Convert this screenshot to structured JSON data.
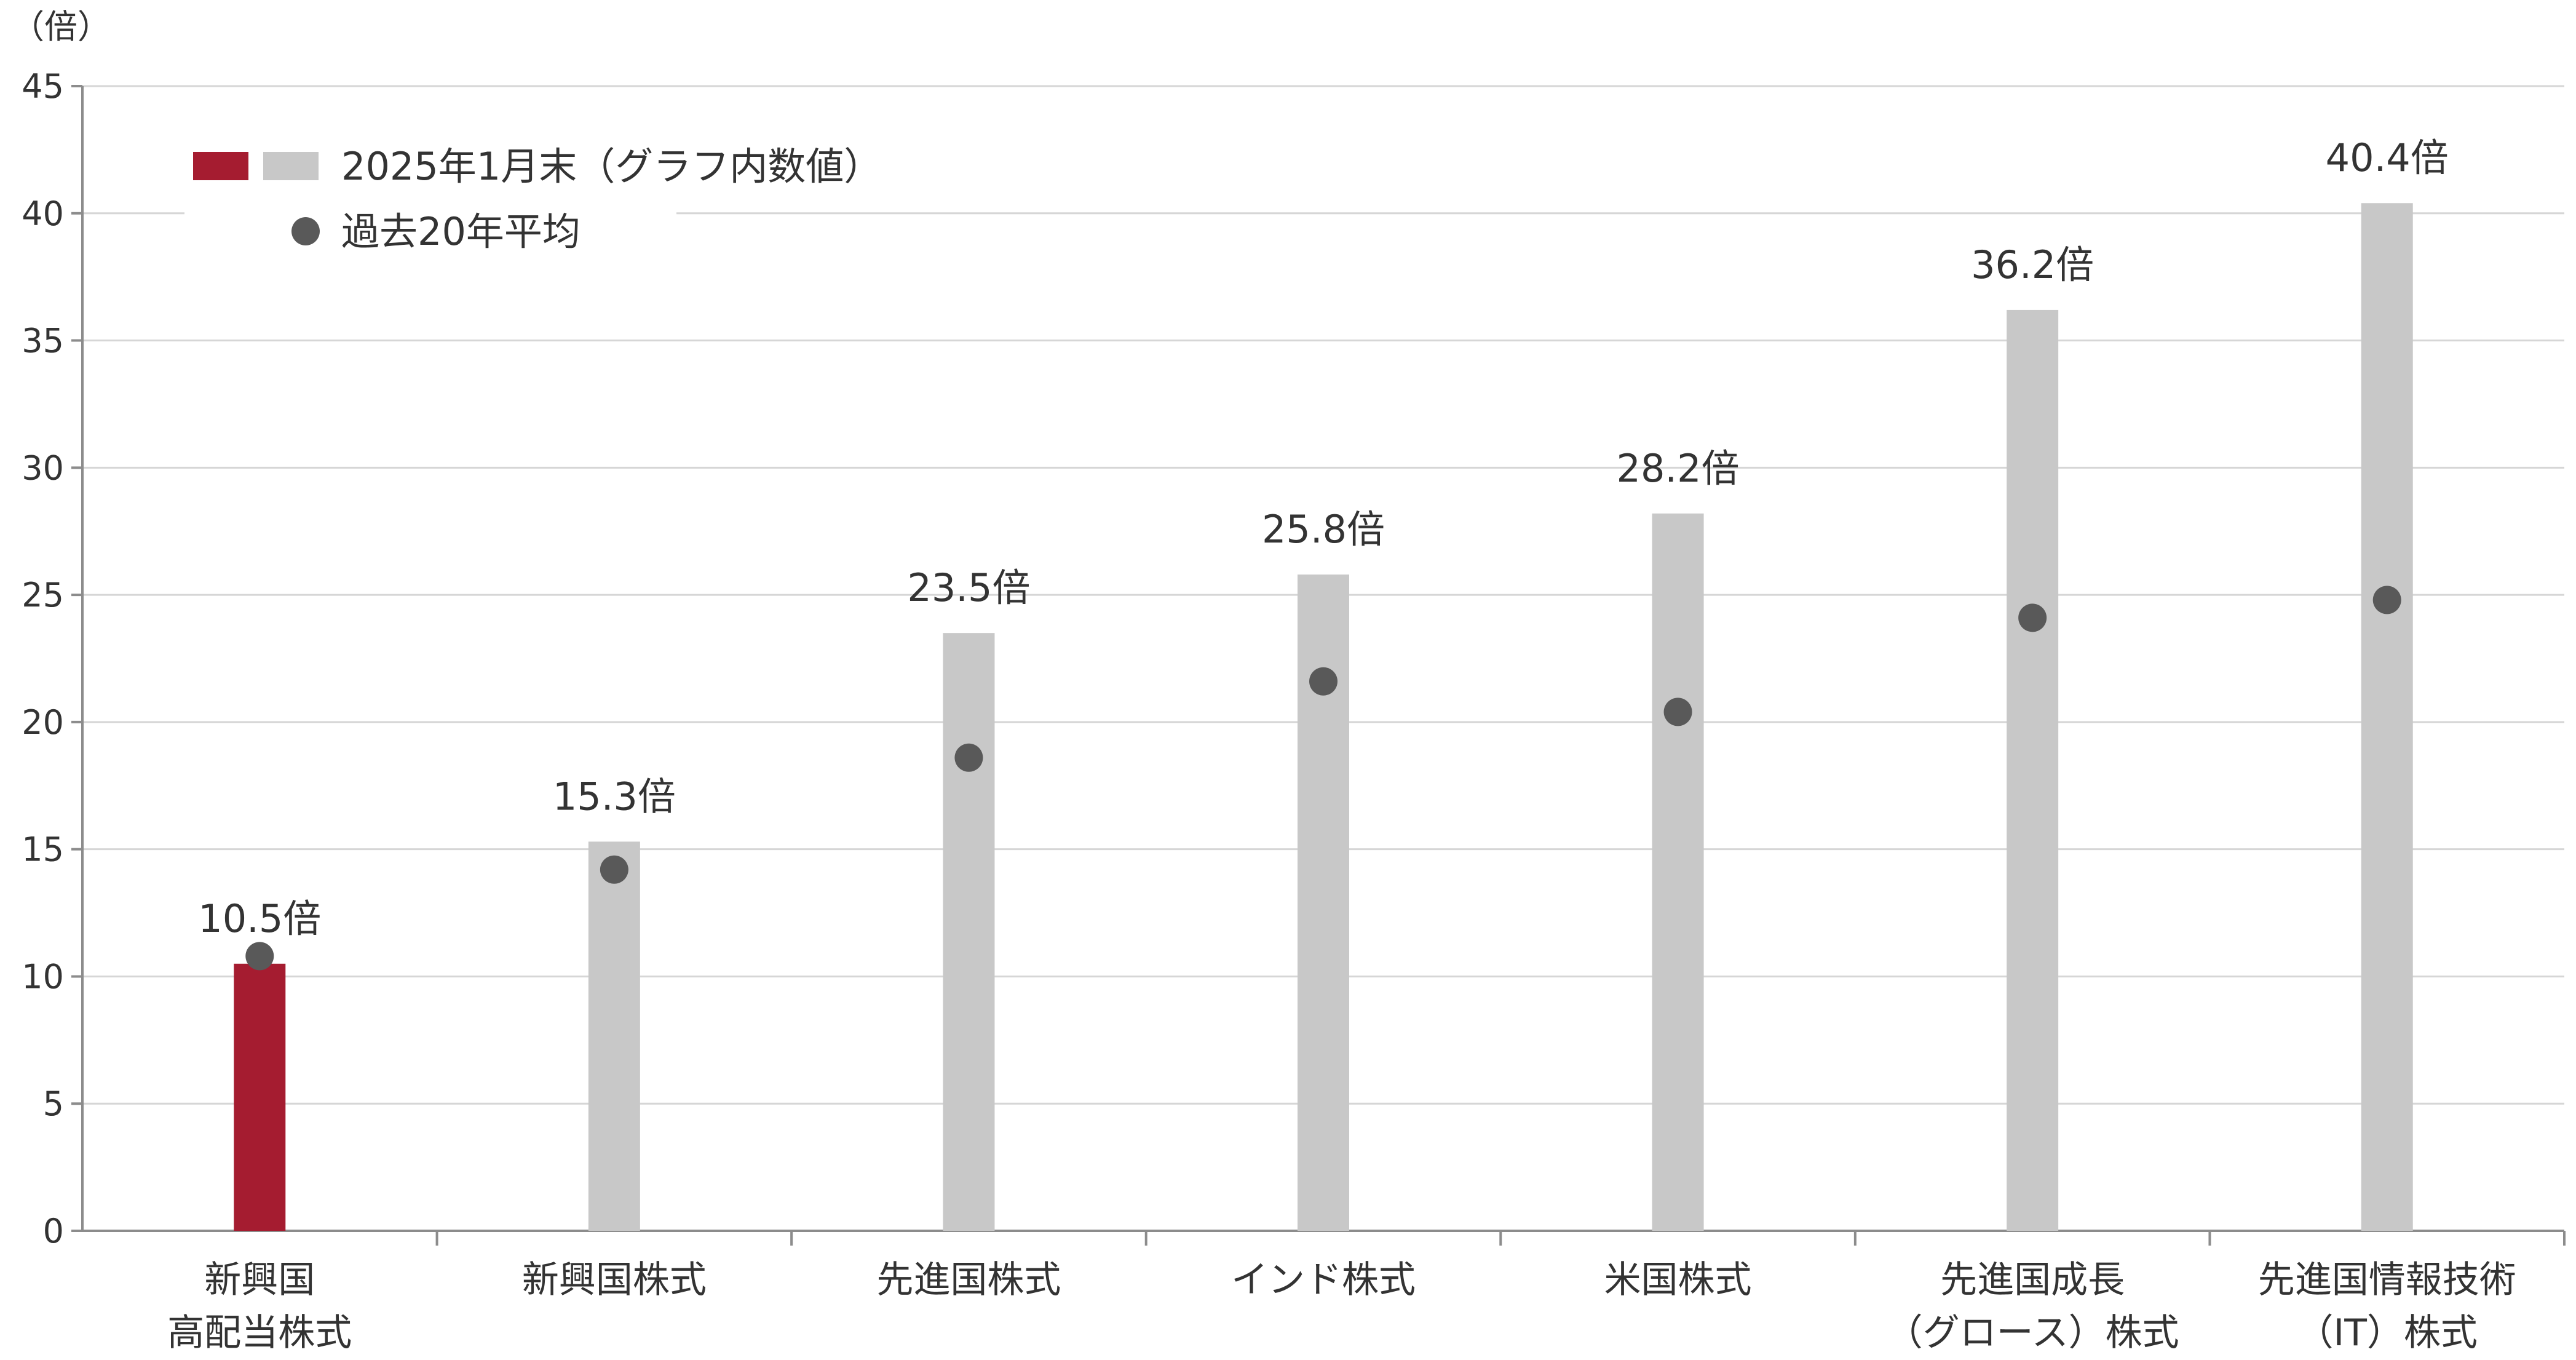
{
  "chart_data": {
    "type": "bar",
    "unit_label": "（倍）",
    "ylim": [
      0,
      45
    ],
    "yticks": [
      0,
      5,
      10,
      15,
      20,
      25,
      30,
      35,
      40,
      45
    ],
    "grid": true,
    "legend_position": "top-left",
    "categories": [
      [
        "新興国",
        "高配当株式"
      ],
      [
        "新興国株式"
      ],
      [
        "先進国株式"
      ],
      [
        "インド株式"
      ],
      [
        "米国株式"
      ],
      [
        "先進国成長",
        "（グロース）株式"
      ],
      [
        "先進国情報技術",
        "（IT）株式"
      ]
    ],
    "series": [
      {
        "name": "2025年1月末（グラフ内数値）",
        "kind": "bar",
        "values": [
          10.5,
          15.3,
          23.5,
          25.8,
          28.2,
          36.2,
          40.4
        ],
        "data_labels": [
          "10.5倍",
          "15.3倍",
          "23.5倍",
          "25.8倍",
          "28.2倍",
          "36.2倍",
          "40.4倍"
        ],
        "colors": [
          "#a51c30",
          "#c8c8c8",
          "#c8c8c8",
          "#c8c8c8",
          "#c8c8c8",
          "#c8c8c8",
          "#c8c8c8"
        ]
      },
      {
        "name": "過去20年平均",
        "kind": "dot",
        "values": [
          10.8,
          14.2,
          18.6,
          21.6,
          20.4,
          24.1,
          24.8
        ],
        "color": "#595959"
      }
    ],
    "legend_colors": [
      "#a51c30",
      "#c8c8c8"
    ]
  }
}
